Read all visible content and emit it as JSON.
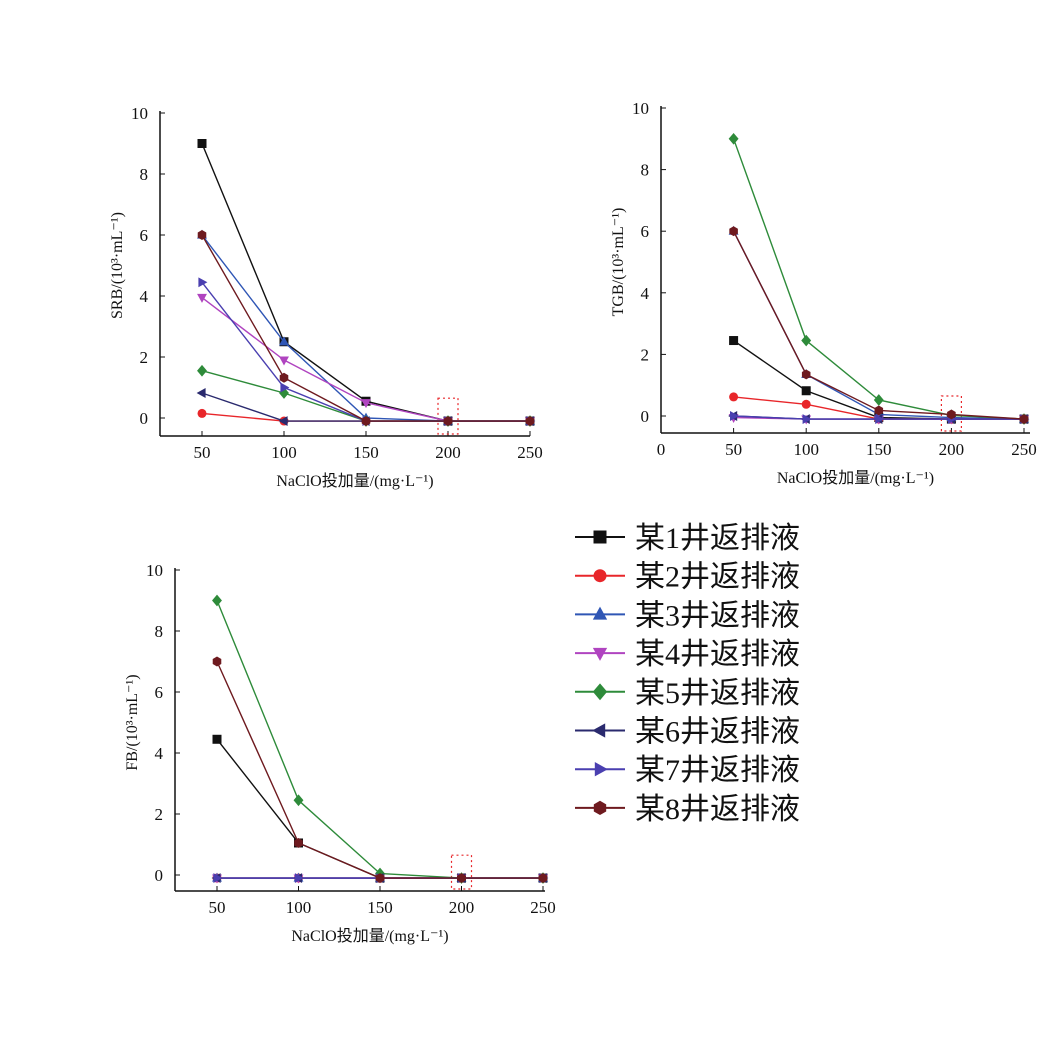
{
  "chart_data": [
    {
      "type": "line",
      "id": "srb",
      "ylabel": "SRB/(10³·mL⁻¹)",
      "xlabel": "NaClO投加量/(mg·L⁻¹)",
      "x": [
        50,
        100,
        150,
        200,
        250
      ],
      "xticks": [
        50,
        100,
        150,
        200,
        250
      ],
      "xlim": [
        25,
        250
      ],
      "ylim": [
        -0.6,
        10
      ],
      "yticks": [
        0,
        2,
        4,
        6,
        8,
        10
      ],
      "highlight_x": 200,
      "series": [
        {
          "name": "某1井返排液",
          "values": [
            9,
            2.5,
            0.55,
            -0.1,
            -0.1
          ]
        },
        {
          "name": "某2井返排液",
          "values": [
            0.15,
            -0.1,
            -0.1,
            -0.1,
            -0.1
          ]
        },
        {
          "name": "某3井返排液",
          "values": [
            6,
            2.5,
            0,
            -0.1,
            -0.1
          ]
        },
        {
          "name": "某4井返排液",
          "values": [
            3.95,
            1.9,
            0.5,
            -0.1,
            -0.1
          ]
        },
        {
          "name": "某5井返排液",
          "values": [
            1.55,
            0.82,
            -0.1,
            -0.1,
            -0.1
          ]
        },
        {
          "name": "某6井返排液",
          "values": [
            0.82,
            -0.1,
            -0.1,
            -0.1,
            -0.1
          ]
        },
        {
          "name": "某7井返排液",
          "values": [
            4.45,
            1.0,
            -0.1,
            -0.1,
            -0.1
          ]
        },
        {
          "name": "某8井返排液",
          "values": [
            6,
            1.32,
            -0.1,
            -0.1,
            -0.1
          ]
        }
      ]
    },
    {
      "type": "line",
      "id": "tgb",
      "ylabel": "TGB/(10³·mL⁻¹)",
      "xlabel": "NaClO投加量/(mg·L⁻¹)",
      "x": [
        50,
        100,
        150,
        200,
        250
      ],
      "xticks": [
        0,
        50,
        100,
        150,
        200,
        250
      ],
      "xlim": [
        0,
        250
      ],
      "ylim": [
        -0.55,
        10
      ],
      "yticks": [
        0,
        2,
        4,
        6,
        8,
        10
      ],
      "highlight_x": 200,
      "series": [
        {
          "name": "某1井返排液",
          "values": [
            2.45,
            0.82,
            -0.05,
            -0.1,
            -0.1
          ]
        },
        {
          "name": "某2井返排液",
          "values": [
            0.62,
            0.38,
            -0.1,
            -0.1,
            -0.1
          ]
        },
        {
          "name": "某3井返排液",
          "values": [
            6,
            1.35,
            0.05,
            -0.05,
            -0.1
          ]
        },
        {
          "name": "某4井返排液",
          "values": [
            -0.05,
            -0.1,
            -0.1,
            -0.1,
            -0.1
          ]
        },
        {
          "name": "某5井返排液",
          "values": [
            9,
            2.45,
            0.52,
            0.02,
            -0.1
          ]
        },
        {
          "name": "某6井返排液",
          "values": [
            0,
            -0.1,
            -0.1,
            -0.1,
            -0.1
          ]
        },
        {
          "name": "某7井返排液",
          "values": [
            0,
            -0.1,
            -0.1,
            -0.1,
            -0.1
          ]
        },
        {
          "name": "某8井返排液",
          "values": [
            6,
            1.35,
            0.18,
            0.05,
            -0.1
          ]
        }
      ]
    },
    {
      "type": "line",
      "id": "fb",
      "ylabel": "FB/(10³·mL⁻¹)",
      "xlabel": "NaClO投加量/(mg·L⁻¹)",
      "x": [
        50,
        100,
        150,
        200,
        250
      ],
      "xticks": [
        50,
        100,
        150,
        200,
        250
      ],
      "xlim": [
        25,
        250
      ],
      "ylim": [
        -0.55,
        10
      ],
      "yticks": [
        0,
        2,
        4,
        6,
        8,
        10
      ],
      "highlight_x": 200,
      "series": [
        {
          "name": "某1井返排液",
          "values": [
            4.45,
            1.05,
            -0.1,
            -0.1,
            -0.1
          ]
        },
        {
          "name": "某2井返排液",
          "values": [
            -0.1,
            -0.1,
            -0.1,
            -0.1,
            -0.1
          ]
        },
        {
          "name": "某3井返排液",
          "values": [
            -0.1,
            -0.1,
            -0.1,
            -0.1,
            -0.1
          ]
        },
        {
          "name": "某4井返排液",
          "values": [
            -0.1,
            -0.1,
            -0.1,
            -0.1,
            -0.1
          ]
        },
        {
          "name": "某5井返排液",
          "values": [
            9,
            2.45,
            0.05,
            -0.1,
            -0.1
          ]
        },
        {
          "name": "某6井返排液",
          "values": [
            -0.1,
            -0.1,
            -0.1,
            -0.1,
            -0.1
          ]
        },
        {
          "name": "某7井返排液",
          "values": [
            -0.1,
            -0.1,
            -0.1,
            -0.1,
            -0.1
          ]
        },
        {
          "name": "某8井返排液",
          "values": [
            7,
            1.05,
            -0.1,
            -0.1,
            -0.1
          ]
        }
      ]
    }
  ],
  "legend": {
    "placement": "bottom-right",
    "items": [
      {
        "label": "某1井返排液",
        "color": "#111111",
        "marker": "square"
      },
      {
        "label": "某2井返排液",
        "color": "#e8262a",
        "marker": "circle"
      },
      {
        "label": "某3井返排液",
        "color": "#2f56b5",
        "marker": "triangle-up"
      },
      {
        "label": "某4井返排液",
        "color": "#b044c0",
        "marker": "triangle-down"
      },
      {
        "label": "某5井返排液",
        "color": "#2e8b3a",
        "marker": "diamond"
      },
      {
        "label": "某6井返排液",
        "color": "#2a2a6e",
        "marker": "triangle-left"
      },
      {
        "label": "某7井返排液",
        "color": "#4a3fb0",
        "marker": "triangle-right"
      },
      {
        "label": "某8井返排液",
        "color": "#6e1a1f",
        "marker": "hexagon"
      }
    ]
  }
}
